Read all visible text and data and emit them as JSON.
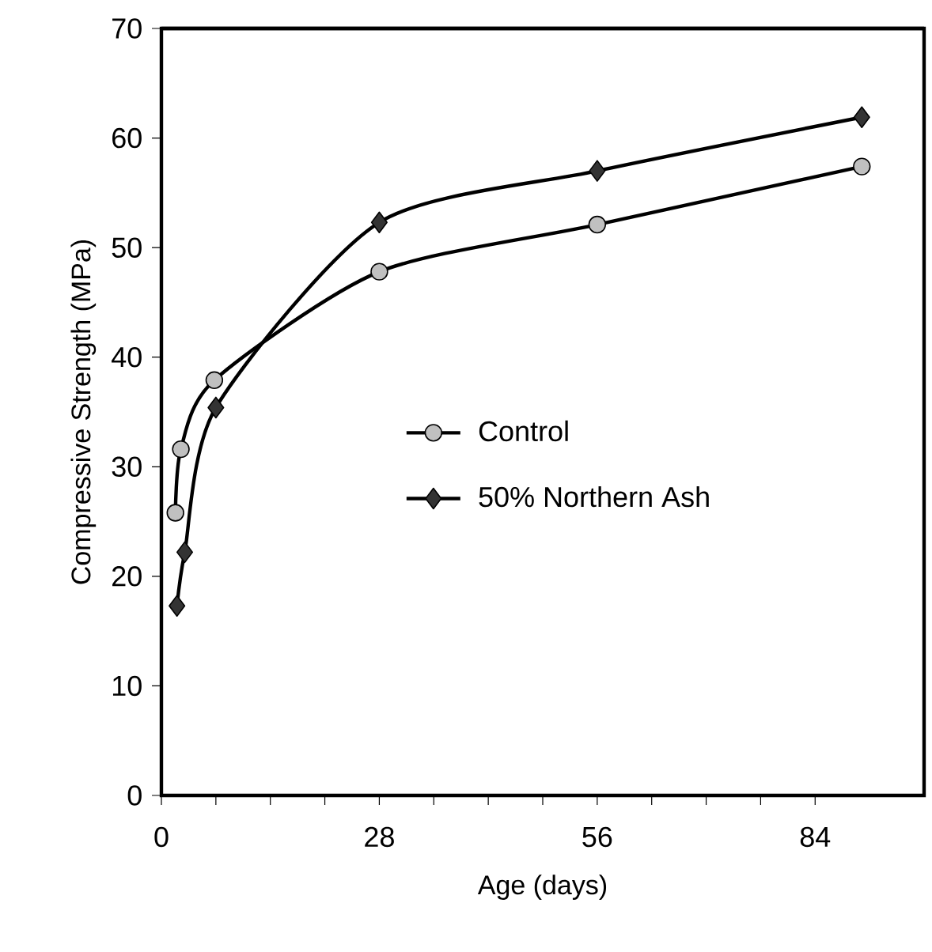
{
  "chart_data": {
    "type": "line",
    "xlabel": "Age (days)",
    "ylabel": "Compressive Strength (MPa)",
    "xlim": [
      0,
      98
    ],
    "xticks": [
      0,
      28,
      56,
      84
    ],
    "ylim": [
      0,
      70
    ],
    "yticks": [
      0,
      10,
      20,
      30,
      40,
      50,
      60,
      70
    ],
    "legend": "center",
    "grid": false,
    "series": [
      {
        "name": "Control",
        "color": "#c0c0c0",
        "marker": "circle",
        "x": [
          1.8,
          2.5,
          6.8,
          28,
          56,
          90
        ],
        "values": [
          25.8,
          31.6,
          37.9,
          47.8,
          52.1,
          57.4
        ]
      },
      {
        "name": "50% Northern Ash",
        "color": "#333333",
        "marker": "diamond",
        "x": [
          2,
          3,
          7,
          28,
          56,
          90
        ],
        "values": [
          17.3,
          22.2,
          35.4,
          52.3,
          57.0,
          61.9
        ]
      }
    ]
  }
}
